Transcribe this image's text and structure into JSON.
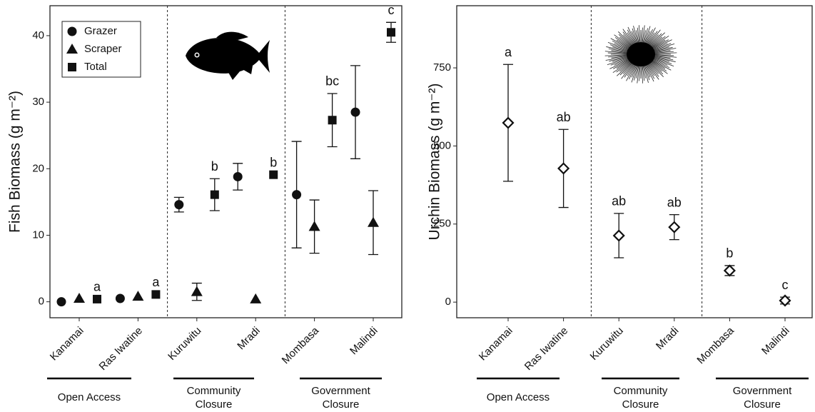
{
  "chart_data": [
    {
      "type": "dot",
      "ylabel": "Fish Biomass (g m⁻²)",
      "categories": [
        "Kanamai",
        "Ras Iwatine",
        "Kuruwitu",
        "Mradi",
        "Mombasa",
        "Malindi"
      ],
      "groups": [
        [
          "Open Access"
        ],
        [
          "Community",
          "Closure"
        ],
        [
          "Government",
          "Closure"
        ]
      ],
      "series": [
        {
          "name": "Grazer",
          "marker": "circle",
          "color": "#111111",
          "values": [
            0,
            0.5,
            14.6,
            18.8,
            16.1,
            28.5
          ],
          "errors": [
            0,
            0,
            1.1,
            2,
            8,
            7
          ]
        },
        {
          "name": "Scraper",
          "marker": "triangle",
          "color": "#111111",
          "values": [
            0.5,
            0.8,
            1.5,
            0.4,
            11.3,
            11.9
          ],
          "errors": [
            0,
            0,
            1.3,
            0,
            4,
            4.8
          ]
        },
        {
          "name": "Total",
          "marker": "square",
          "color": "#111111",
          "values": [
            0.4,
            1.1,
            16.1,
            19.1,
            27.3,
            40.5
          ],
          "errors": [
            0,
            0,
            2.4,
            0,
            4,
            1.5
          ]
        }
      ],
      "letters": [
        "a",
        "a",
        "b",
        "b",
        "bc",
        "c"
      ],
      "ylim": [
        -2.4,
        44.5
      ],
      "yticks": [
        0,
        10,
        20,
        30,
        40
      ],
      "legend": "upper left"
    },
    {
      "type": "dot",
      "ylabel": "Urchin Biomass (g m⁻²)",
      "categories": [
        "Kanamai",
        "Ras Iwatine",
        "Kuruwitu",
        "Mradi",
        "Mombasa",
        "Malindi"
      ],
      "groups": [
        [
          "Open Access"
        ],
        [
          "Community",
          "Closure"
        ],
        [
          "Government",
          "Closure"
        ]
      ],
      "series": [
        {
          "marker": "diamond",
          "color": "#111111",
          "values": [
            574,
            428,
            213,
            240,
            101,
            5
          ],
          "errors": [
            187,
            125,
            71,
            40,
            16,
            11
          ]
        }
      ],
      "letters": [
        "a",
        "ab",
        "ab",
        "ab",
        "b",
        "c"
      ],
      "ylim": [
        -50,
        949
      ],
      "yticks": [
        0,
        250,
        500,
        750
      ]
    }
  ]
}
